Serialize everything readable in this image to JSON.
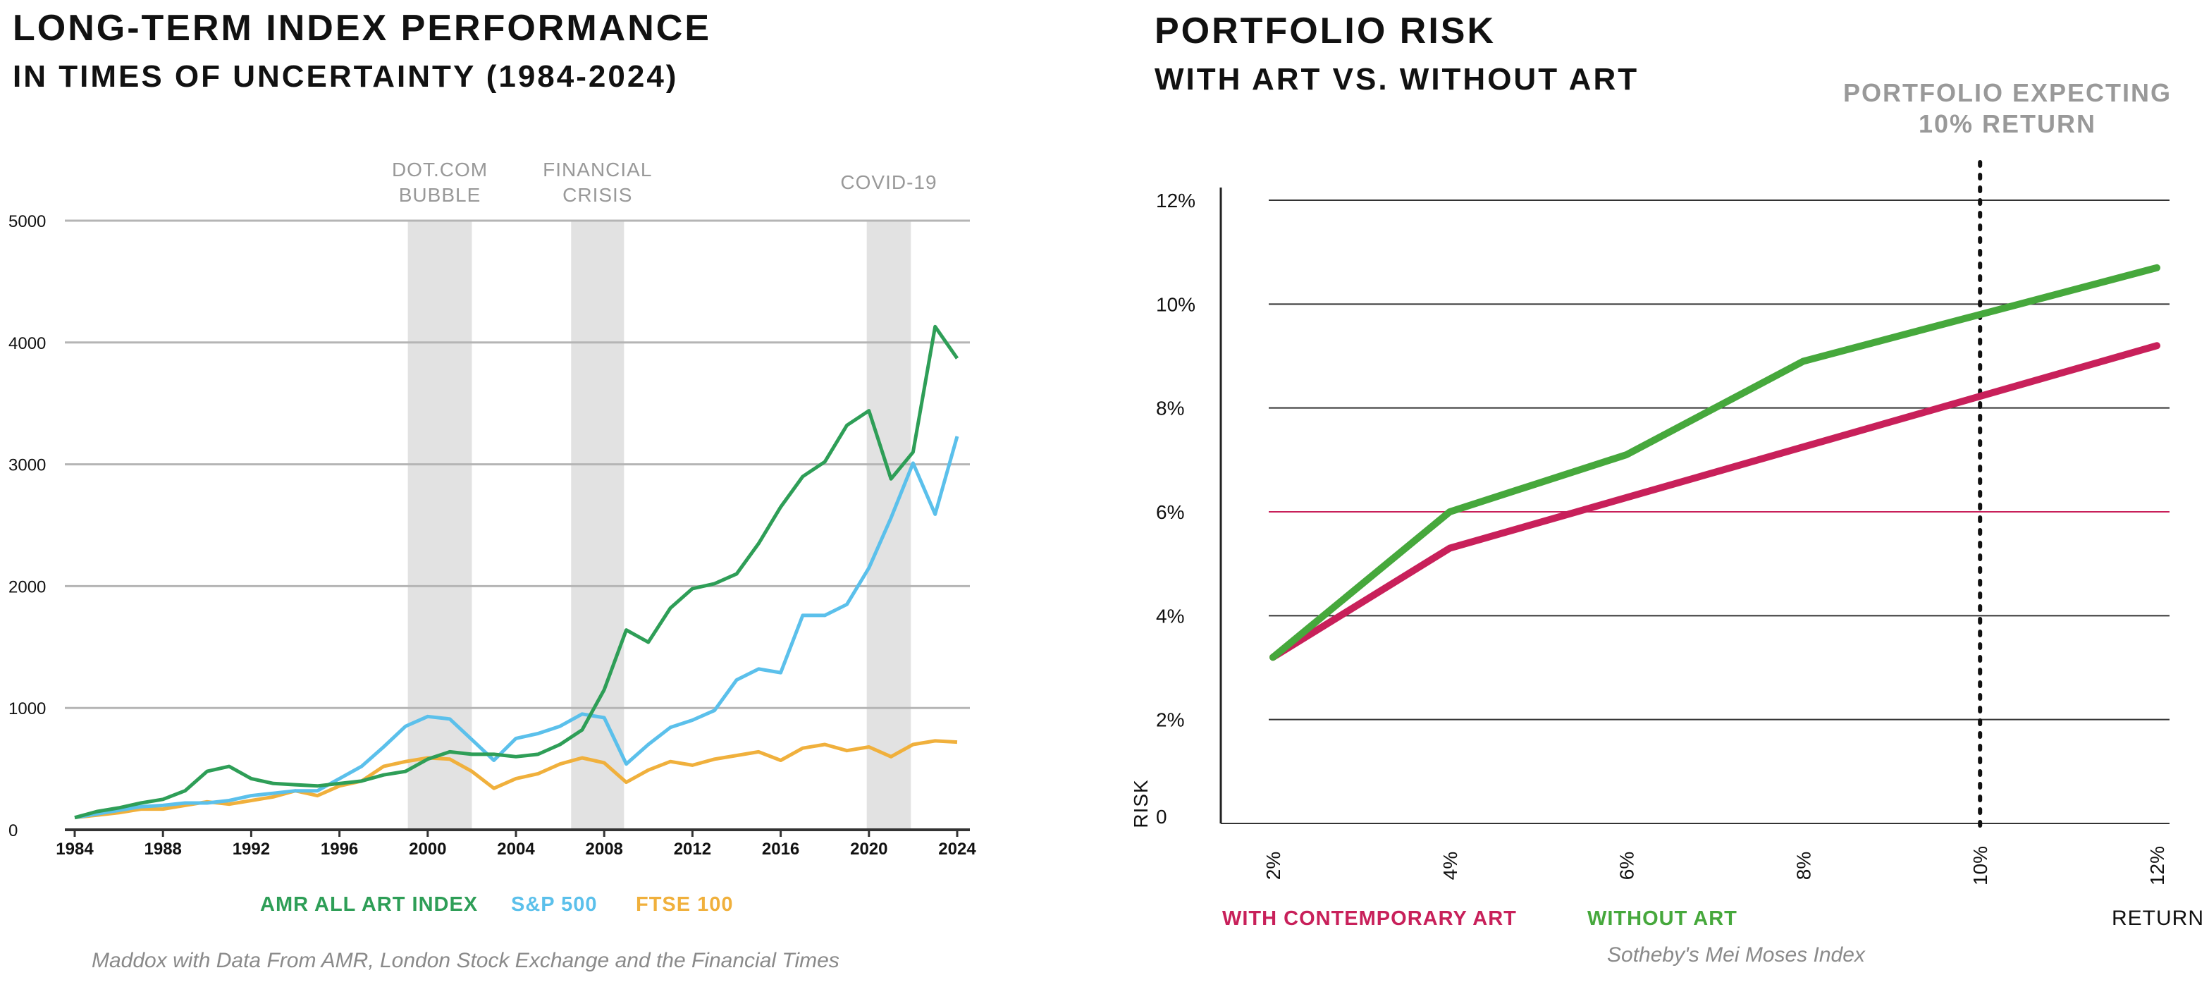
{
  "left": {
    "title_line1": "LONG-TERM INDEX PERFORMANCE",
    "title_line2": "IN TIMES OF UNCERTAINTY (1984-2024)",
    "source": "Maddox with Data From AMR, London Stock Exchange and the  Financial Times"
  },
  "right": {
    "title_line1": "PORTFOLIO RISK",
    "title_line2": "WITH ART VS. WITHOUT ART",
    "source": "Sotheby's Mei Moses Index"
  },
  "colors": {
    "amr": "#2e9e57",
    "sp500": "#5bc0eb",
    "ftse": "#f0b03c",
    "with_art": "#c8205a",
    "without_art": "#46a83c",
    "shade": "#e2e2e2",
    "grid": "#b5b5b5",
    "annotation": "#999999"
  },
  "chart_data": [
    {
      "type": "line",
      "x": [
        1984,
        1985,
        1986,
        1987,
        1988,
        1989,
        1990,
        1991,
        1992,
        1993,
        1994,
        1995,
        1996,
        1997,
        1998,
        1999,
        2000,
        2001,
        2002,
        2003,
        2004,
        2005,
        2006,
        2007,
        2008,
        2009,
        2010,
        2011,
        2012,
        2013,
        2014,
        2015,
        2016,
        2017,
        2018,
        2019,
        2020,
        2021,
        2022,
        2023,
        2024
      ],
      "x_ticks": [
        "1984",
        "1988",
        "1992",
        "1996",
        "2000",
        "2004",
        "2008",
        "2012",
        "2016",
        "2020",
        "2024"
      ],
      "y_ticks": [
        "0",
        "1000",
        "2000",
        "3000",
        "4000",
        "5000"
      ],
      "ylim": [
        0,
        5000
      ],
      "grid": true,
      "legend_position": "bottom",
      "series": [
        {
          "name": "AMR ALL ART INDEX",
          "values": [
            100,
            150,
            180,
            220,
            250,
            320,
            480,
            520,
            420,
            380,
            370,
            360,
            380,
            400,
            450,
            480,
            580,
            640,
            620,
            620,
            600,
            620,
            700,
            820,
            1150,
            1640,
            1540,
            1820,
            1980,
            2020,
            2100,
            2350,
            2650,
            2900,
            3020,
            3320,
            3440,
            2880,
            3100,
            4130,
            3870
          ]
        },
        {
          "name": "S&P 500",
          "values": [
            100,
            130,
            160,
            190,
            200,
            220,
            220,
            240,
            280,
            300,
            320,
            320,
            420,
            520,
            680,
            850,
            930,
            910,
            740,
            570,
            750,
            790,
            850,
            950,
            920,
            540,
            700,
            840,
            900,
            980,
            1230,
            1320,
            1290,
            1760,
            1760,
            1850,
            2150,
            2560,
            3010,
            2590,
            3230
          ]
        },
        {
          "name": "FTSE 100",
          "values": [
            100,
            120,
            140,
            170,
            170,
            200,
            230,
            210,
            240,
            270,
            320,
            280,
            360,
            400,
            520,
            560,
            590,
            580,
            480,
            340,
            420,
            460,
            540,
            590,
            550,
            390,
            490,
            560,
            530,
            580,
            610,
            640,
            570,
            670,
            700,
            650,
            680,
            600,
            700,
            730,
            720
          ]
        }
      ],
      "annotations": [
        {
          "label": [
            "DOT.COM",
            "BUBBLE"
          ],
          "x_range": [
            1999.1,
            2002.0
          ]
        },
        {
          "label": [
            "FINANCIAL",
            "CRISIS"
          ],
          "x_range": [
            2006.5,
            2008.9
          ]
        },
        {
          "label": [
            "COVID-19"
          ],
          "x_range": [
            2019.9,
            2021.9
          ]
        }
      ]
    },
    {
      "type": "line",
      "xlabel": "RETURN",
      "ylabel": "RISK",
      "x_ticks": [
        "2%",
        "4%",
        "6%",
        "8%",
        "10%",
        "12%"
      ],
      "y_ticks": [
        "0",
        "2%",
        "4%",
        "6%",
        "8%",
        "10%",
        "12%"
      ],
      "xlim": [
        2,
        12
      ],
      "ylim": [
        0,
        12
      ],
      "grid": true,
      "legend_position": "bottom",
      "series": [
        {
          "name": "WITH CONTEMPORARY ART",
          "x": [
            2,
            4,
            12
          ],
          "y": [
            3.2,
            5.3,
            9.2
          ]
        },
        {
          "name": "WITHOUT ART",
          "x": [
            2,
            4,
            6,
            8,
            12
          ],
          "y": [
            3.2,
            6.0,
            7.1,
            8.9,
            10.7
          ]
        }
      ],
      "reference_line": {
        "x": 10,
        "label": [
          "PORTFOLIO EXPECTING",
          "10% RETURN"
        ]
      }
    }
  ]
}
